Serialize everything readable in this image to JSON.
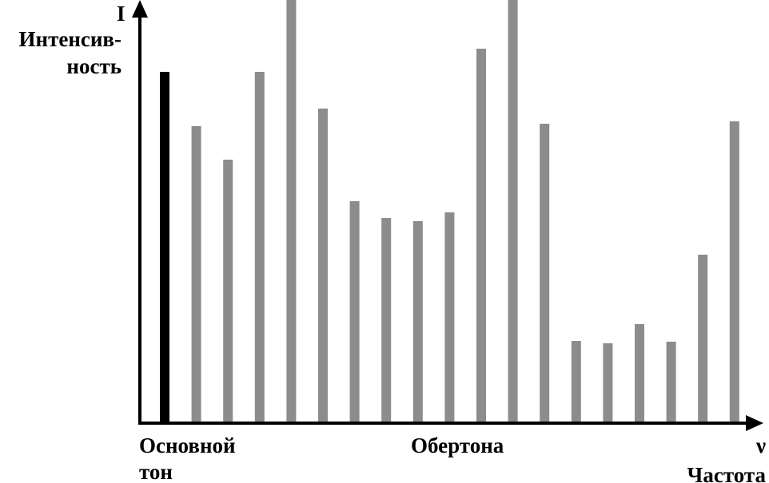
{
  "chart_data": {
    "type": "bar",
    "y_axis_symbol": "I",
    "y_label": [
      "Интенсив-",
      "ность"
    ],
    "x_axis_symbol": "ν",
    "x_label": "Частота",
    "annotations": {
      "fundamental": [
        "Основной",
        "тон"
      ],
      "overtones": "Обертона"
    },
    "categories": [
      null,
      null,
      null,
      null,
      null,
      null,
      null,
      null,
      null,
      null,
      null,
      null,
      null,
      null,
      null,
      null,
      null,
      null,
      null
    ],
    "values": [
      440,
      372,
      330,
      440,
      530,
      394,
      278,
      257,
      253,
      264,
      469,
      530,
      375,
      103,
      100,
      124,
      102,
      211,
      378
    ],
    "colors": [
      "#000000",
      "#8c8c8c",
      "#8c8c8c",
      "#8c8c8c",
      "#8c8c8c",
      "#8c8c8c",
      "#8c8c8c",
      "#8c8c8c",
      "#8c8c8c",
      "#8c8c8c",
      "#8c8c8c",
      "#8c8c8c",
      "#8c8c8c",
      "#8c8c8c",
      "#8c8c8c",
      "#8c8c8c",
      "#8c8c8c",
      "#8c8c8c",
      "#8c8c8c"
    ]
  }
}
